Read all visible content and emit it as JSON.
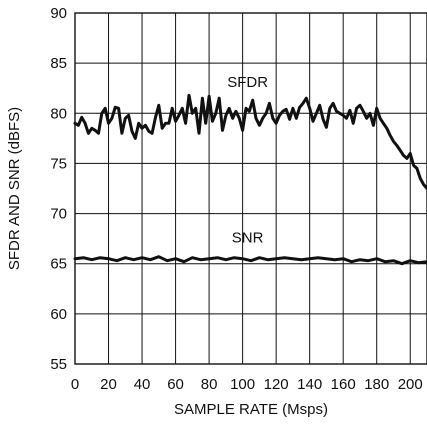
{
  "chart_data": {
    "type": "line",
    "title": "",
    "xlabel": "SAMPLE RATE (Msps)",
    "ylabel": "SFDR AND SNR (dBFS)",
    "xlim": [
      0,
      210
    ],
    "ylim": [
      55,
      90
    ],
    "xticks": [
      0,
      20,
      40,
      60,
      80,
      100,
      120,
      140,
      160,
      180,
      200
    ],
    "yticks": [
      55,
      60,
      65,
      70,
      75,
      80,
      85,
      90
    ],
    "grid": true,
    "legend": "none",
    "series": [
      {
        "name": "SFDR",
        "color": "#111111",
        "x": [
          0,
          2,
          4,
          6,
          8,
          10,
          12,
          14,
          16,
          18,
          20,
          22,
          24,
          26,
          28,
          30,
          32,
          34,
          36,
          38,
          40,
          42,
          44,
          46,
          48,
          50,
          52,
          54,
          56,
          58,
          60,
          62,
          64,
          66,
          68,
          70,
          72,
          74,
          76,
          78,
          80,
          82,
          84,
          86,
          88,
          90,
          92,
          94,
          96,
          98,
          100,
          102,
          104,
          106,
          108,
          110,
          112,
          114,
          116,
          118,
          120,
          122,
          124,
          126,
          128,
          130,
          132,
          134,
          136,
          138,
          140,
          142,
          144,
          146,
          148,
          150,
          152,
          154,
          156,
          158,
          160,
          162,
          164,
          166,
          168,
          170,
          172,
          174,
          176,
          178,
          180,
          182,
          184,
          186,
          188,
          190,
          192,
          194,
          196,
          198,
          200,
          202,
          204,
          206,
          208,
          210
        ],
        "y": [
          79,
          78.8,
          79.6,
          79,
          78,
          78.5,
          78.3,
          78,
          80,
          80.5,
          79,
          79.5,
          80.6,
          80.5,
          78,
          79.5,
          79.8,
          78.2,
          77.5,
          79,
          78.5,
          78.8,
          78.2,
          78,
          79.6,
          80.8,
          78.5,
          79,
          79,
          80.5,
          79.2,
          79.8,
          80.5,
          79,
          81.8,
          80,
          80.5,
          78,
          81.5,
          79,
          81.7,
          79.2,
          80,
          81.5,
          78.3,
          79.8,
          80.5,
          79.5,
          80.2,
          79.5,
          78.3,
          80.5,
          80.2,
          81.3,
          79.5,
          78.8,
          79.5,
          80,
          81,
          79.5,
          79,
          79.8,
          80.2,
          80.4,
          79.4,
          80.5,
          79.5,
          80.6,
          81,
          81.5,
          80.5,
          79.2,
          80,
          80.8,
          79.4,
          78.6,
          80.5,
          81,
          80.2,
          80,
          79.8,
          79.5,
          80.3,
          79,
          80.5,
          80.8,
          80.2,
          79.5,
          80,
          78.8,
          80.5,
          79.5,
          79,
          78.5,
          77.8,
          77.2,
          76.8,
          76.3,
          75.8,
          75.5,
          76,
          74.8,
          74.5,
          73.5,
          72.9,
          72.5
        ]
      },
      {
        "name": "SNR",
        "color": "#111111",
        "x": [
          0,
          5,
          10,
          15,
          20,
          25,
          30,
          35,
          40,
          45,
          50,
          55,
          60,
          65,
          70,
          75,
          80,
          85,
          90,
          95,
          100,
          105,
          110,
          115,
          120,
          125,
          130,
          135,
          140,
          145,
          150,
          155,
          160,
          165,
          170,
          175,
          180,
          185,
          190,
          195,
          200,
          205,
          210
        ],
        "y": [
          65.5,
          65.6,
          65.4,
          65.6,
          65.5,
          65.3,
          65.6,
          65.4,
          65.6,
          65.4,
          65.7,
          65.3,
          65.5,
          65.2,
          65.6,
          65.4,
          65.5,
          65.6,
          65.4,
          65.6,
          65.5,
          65.3,
          65.6,
          65.4,
          65.5,
          65.6,
          65.5,
          65.4,
          65.5,
          65.6,
          65.5,
          65.4,
          65.5,
          65.2,
          65.4,
          65.3,
          65.5,
          65.2,
          65.3,
          65.0,
          65.3,
          65.1,
          65.2
        ]
      }
    ],
    "annotations": [
      {
        "text": "SFDR",
        "x": 103,
        "y": 82.6
      },
      {
        "text": "SNR",
        "x": 103,
        "y": 67.1
      }
    ]
  }
}
